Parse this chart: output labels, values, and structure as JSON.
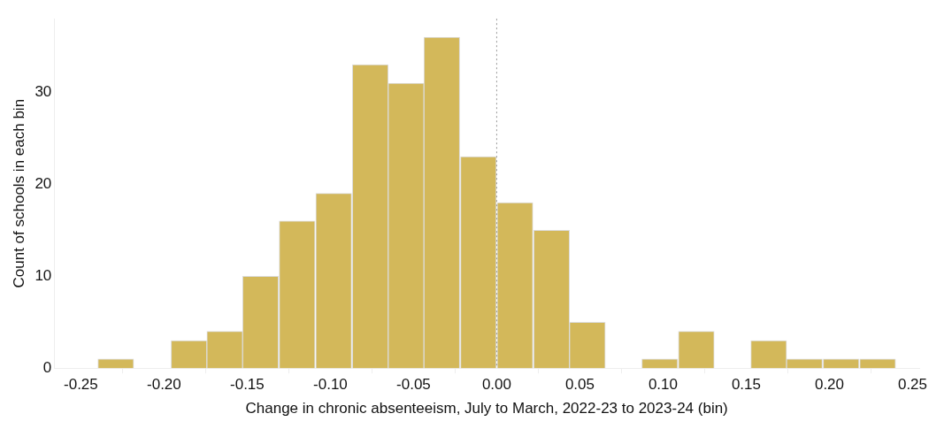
{
  "chart_data": {
    "type": "histogram",
    "xlabel": "Change in chronic absenteeism, July to March, 2022-23 to 2023-24 (bin)",
    "ylabel": "Count of schools in each bin",
    "bins": [
      -0.24,
      -0.218,
      -0.196,
      -0.174,
      -0.153,
      -0.131,
      -0.109,
      -0.087,
      -0.065,
      -0.044,
      -0.022,
      0,
      0.022,
      0.044,
      0.065,
      0.087,
      0.109,
      0.131,
      0.153,
      0.174,
      0.196,
      0.218,
      0.24
    ],
    "values": [
      1,
      0,
      3,
      4,
      10,
      16,
      19,
      33,
      31,
      36,
      23,
      18,
      15,
      5,
      0,
      1,
      4,
      0,
      3,
      1,
      1,
      1
    ],
    "color": "#d3b85a",
    "xlim": [
      -0.266,
      0.254
    ],
    "xticks": [
      {
        "value": -0.25,
        "label": "-0.25"
      },
      {
        "value": -0.2,
        "label": "-0.20"
      },
      {
        "value": -0.15,
        "label": "-0.15"
      },
      {
        "value": -0.1,
        "label": "-0.10"
      },
      {
        "value": -0.05,
        "label": "-0.05"
      },
      {
        "value": 0,
        "label": "0.00"
      },
      {
        "value": 0.05,
        "label": "0.05"
      },
      {
        "value": 0.1,
        "label": "0.10"
      },
      {
        "value": 0.15,
        "label": "0.15"
      },
      {
        "value": 0.2,
        "label": "0.20"
      },
      {
        "value": 0.25,
        "label": "0.25"
      }
    ],
    "ylim": [
      0,
      38
    ],
    "yticks": [
      0,
      10,
      20,
      30
    ],
    "ref_lines": [
      {
        "axis": "x",
        "value": 0,
        "color": "#999999",
        "line_style": "dotted"
      }
    ],
    "grid": false,
    "legend": false
  }
}
